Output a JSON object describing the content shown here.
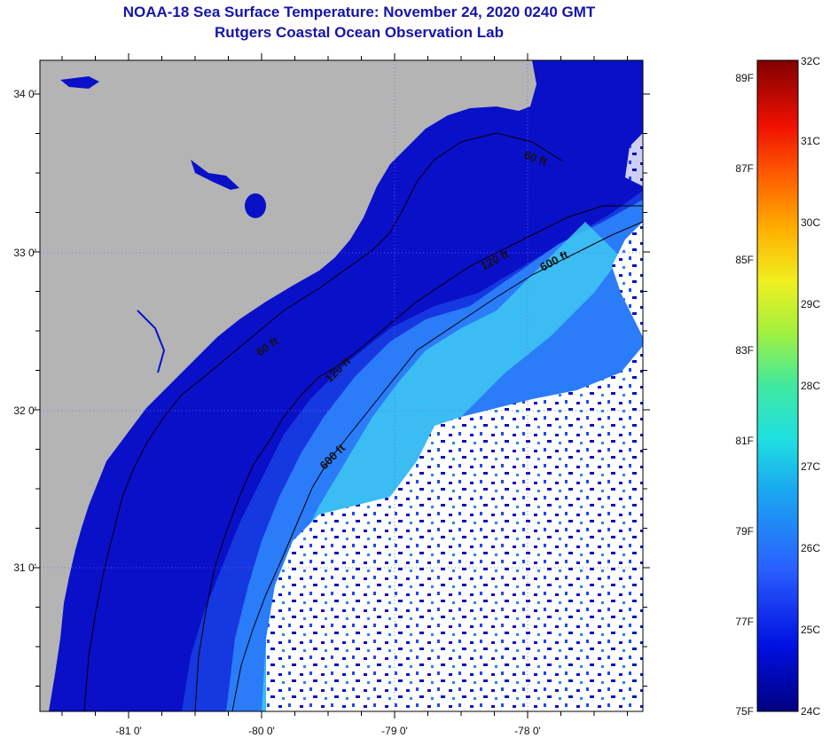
{
  "header": {
    "title": "NOAA-18 Sea Surface Temperature:  November 24, 2020 0240 GMT",
    "subtitle": "Rutgers Coastal Ocean Observation Lab"
  },
  "map": {
    "lat_ticks": [
      {
        "value": 34,
        "label": "34 0'"
      },
      {
        "value": 33,
        "label": "33 0'"
      },
      {
        "value": 32,
        "label": "32 0'"
      },
      {
        "value": 31,
        "label": "31 0'"
      }
    ],
    "lon_ticks": [
      {
        "value": -81,
        "label": "-81 0'"
      },
      {
        "value": -80,
        "label": "-80 0'"
      },
      {
        "value": -79,
        "label": "-79 0'"
      },
      {
        "value": -78,
        "label": "-78 0'"
      }
    ],
    "contour_labels": [
      "60 ft",
      "120 ft",
      "600 ft",
      "60 ft",
      "120 ft",
      "600 ft"
    ],
    "colors": {
      "land": "#b4b4b4",
      "cloud": "#ffffff",
      "nearshore": "#0a10c8",
      "shelf": "#1e4af0",
      "warm": "#3aa8ff",
      "gulfstream": "#38e0f0"
    }
  },
  "colorbar": {
    "fahrenheit": [
      "89F",
      "87F",
      "85F",
      "83F",
      "81F",
      "79F",
      "77F",
      "75F"
    ],
    "celsius": [
      "32C",
      "31C",
      "30C",
      "29C",
      "28C",
      "27C",
      "26C",
      "25C",
      "24C"
    ]
  }
}
